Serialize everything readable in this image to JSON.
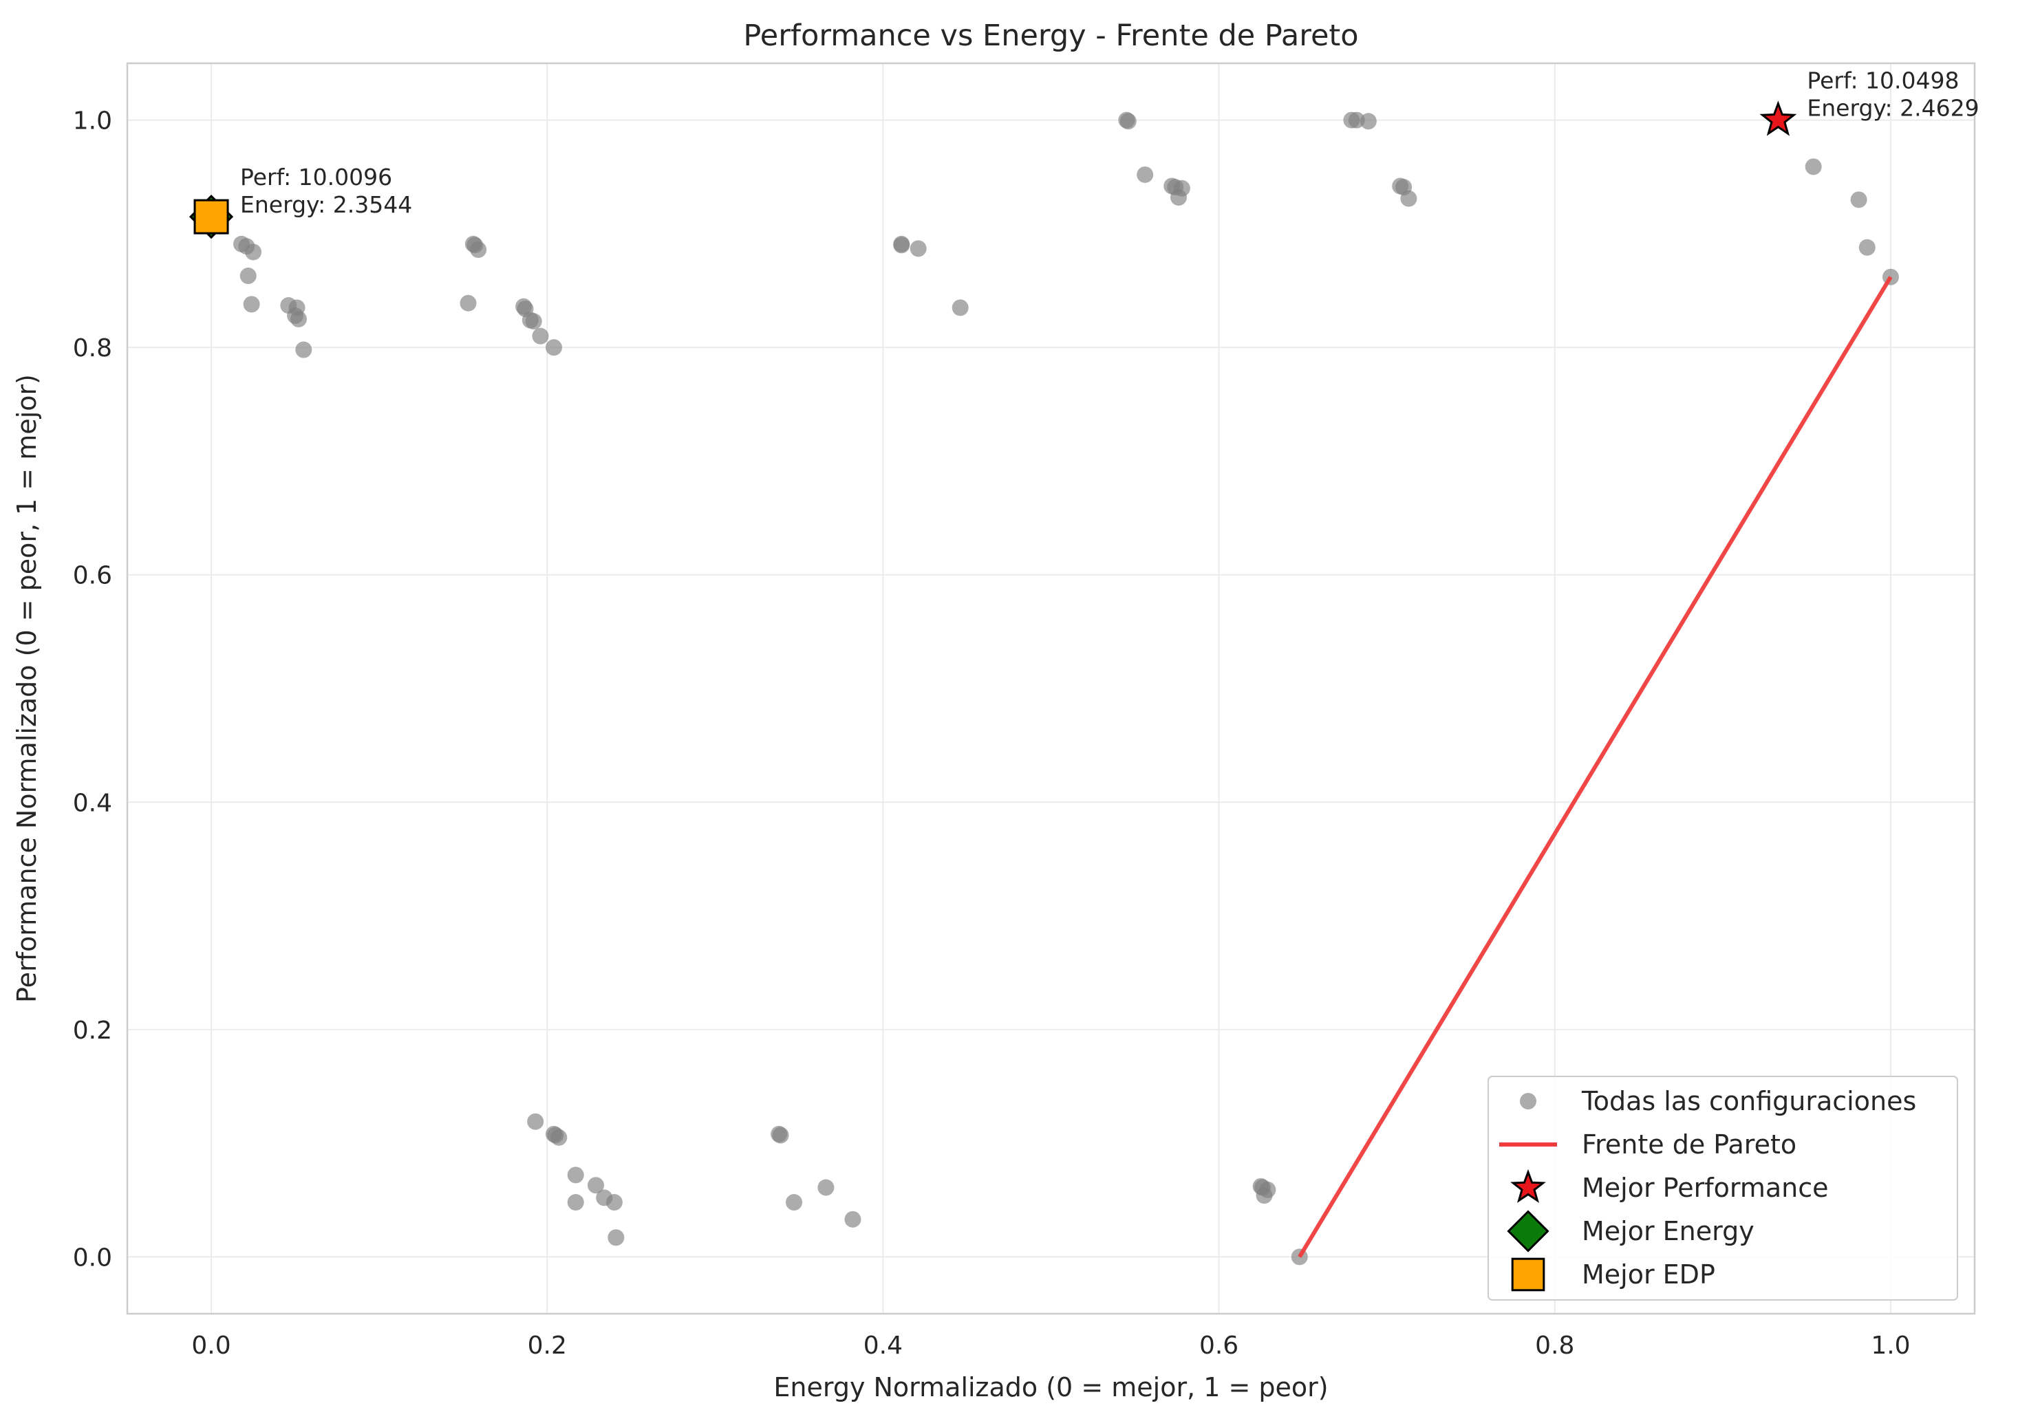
{
  "chart_data": {
    "type": "scatter",
    "title": "Performance vs Energy - Frente de Pareto",
    "xlabel": "Energy Normalizado (0 = mejor, 1 = peor)",
    "ylabel": "Performance Normalizado (0 = peor, 1 = mejor)",
    "xlim": [
      -0.05,
      1.05
    ],
    "ylim": [
      -0.05,
      1.05
    ],
    "xticks": [
      "0.0",
      "0.2",
      "0.4",
      "0.6",
      "0.8",
      "1.0"
    ],
    "yticks": [
      "0.0",
      "0.2",
      "0.4",
      "0.6",
      "0.8",
      "1.0"
    ],
    "grid": true,
    "legend_position": "lower-right",
    "colors": {
      "points": "#808080",
      "pareto": "#f03c3c",
      "best_performance": "#e8161a",
      "best_energy": "#0a7a0a",
      "best_edp": "#ffa500",
      "grid": "#ebebeb",
      "axes": "#cccccc"
    },
    "series": [
      {
        "name": "Todas las configuraciones",
        "kind": "scatter",
        "points": [
          [
            0.0,
            0.915
          ],
          [
            0.018,
            0.891
          ],
          [
            0.021,
            0.889
          ],
          [
            0.025,
            0.884
          ],
          [
            0.022,
            0.863
          ],
          [
            0.024,
            0.838
          ],
          [
            0.046,
            0.837
          ],
          [
            0.051,
            0.835
          ],
          [
            0.05,
            0.828
          ],
          [
            0.052,
            0.825
          ],
          [
            0.055,
            0.798
          ],
          [
            0.156,
            0.891
          ],
          [
            0.157,
            0.89
          ],
          [
            0.159,
            0.886
          ],
          [
            0.153,
            0.839
          ],
          [
            0.186,
            0.836
          ],
          [
            0.187,
            0.834
          ],
          [
            0.19,
            0.824
          ],
          [
            0.192,
            0.823
          ],
          [
            0.196,
            0.81
          ],
          [
            0.204,
            0.8
          ],
          [
            0.193,
            0.119
          ],
          [
            0.204,
            0.108
          ],
          [
            0.205,
            0.107
          ],
          [
            0.207,
            0.105
          ],
          [
            0.217,
            0.072
          ],
          [
            0.229,
            0.063
          ],
          [
            0.234,
            0.052
          ],
          [
            0.217,
            0.048
          ],
          [
            0.24,
            0.048
          ],
          [
            0.241,
            0.017
          ],
          [
            0.338,
            0.108
          ],
          [
            0.339,
            0.107
          ],
          [
            0.347,
            0.048
          ],
          [
            0.366,
            0.061
          ],
          [
            0.382,
            0.033
          ],
          [
            0.411,
            0.891
          ],
          [
            0.411,
            0.89
          ],
          [
            0.421,
            0.887
          ],
          [
            0.446,
            0.835
          ],
          [
            0.545,
            1.0
          ],
          [
            0.546,
            0.999
          ],
          [
            0.556,
            0.952
          ],
          [
            0.572,
            0.942
          ],
          [
            0.574,
            0.941
          ],
          [
            0.578,
            0.94
          ],
          [
            0.576,
            0.932
          ],
          [
            0.625,
            0.062
          ],
          [
            0.626,
            0.061
          ],
          [
            0.629,
            0.059
          ],
          [
            0.627,
            0.054
          ],
          [
            0.648,
            0.0
          ],
          [
            0.679,
            1.0
          ],
          [
            0.682,
            1.0
          ],
          [
            0.689,
            0.999
          ],
          [
            0.708,
            0.942
          ],
          [
            0.71,
            0.941
          ],
          [
            0.713,
            0.931
          ],
          [
            0.933,
            1.0
          ],
          [
            0.954,
            0.959
          ],
          [
            0.981,
            0.93
          ],
          [
            0.986,
            0.888
          ],
          [
            1.0,
            0.862
          ]
        ]
      },
      {
        "name": "Frente de Pareto",
        "kind": "line",
        "points": [
          [
            0.648,
            0.0
          ],
          [
            1.0,
            0.862
          ]
        ]
      },
      {
        "name": "Mejor Performance",
        "kind": "marker",
        "marker": "star",
        "points": [
          [
            0.933,
            1.0
          ]
        ]
      },
      {
        "name": "Mejor Energy",
        "kind": "marker",
        "marker": "diamond",
        "points": [
          [
            0.0,
            0.915
          ]
        ]
      },
      {
        "name": "Mejor EDP",
        "kind": "marker",
        "marker": "square",
        "points": [
          [
            0.0,
            0.915
          ]
        ]
      }
    ],
    "annotations": [
      {
        "lines": [
          "Perf: 10.0498",
          "Energy: 2.4629"
        ],
        "x": 0.933,
        "y": 1.0
      },
      {
        "lines": [
          "Perf: 10.0096",
          "Energy: 2.3544"
        ],
        "x": 0.0,
        "y": 0.915
      }
    ]
  }
}
